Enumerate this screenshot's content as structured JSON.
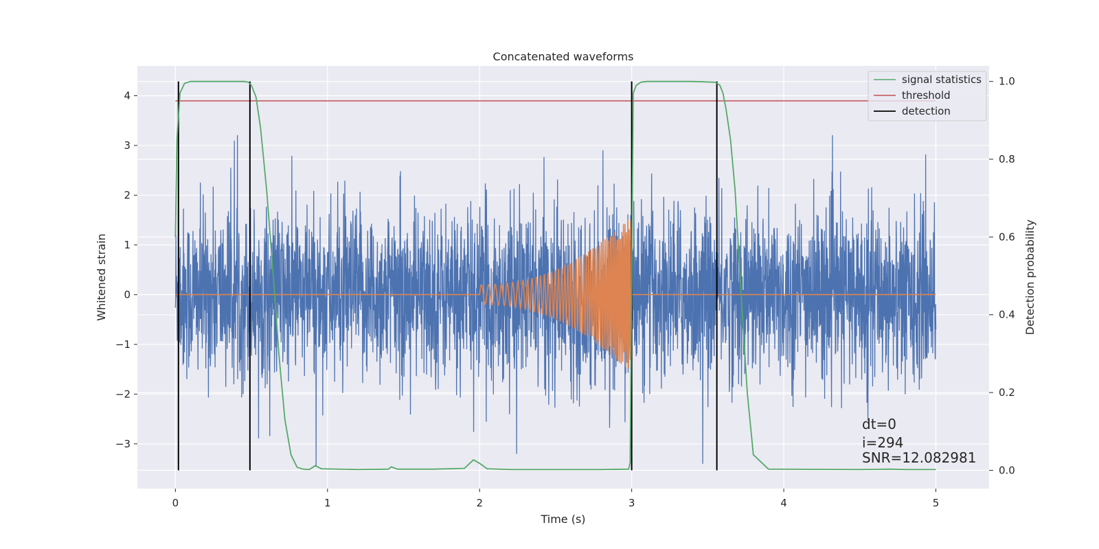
{
  "chart_data": {
    "type": "line",
    "title": "Concatenated waveforms",
    "xlabel": "Time (s)",
    "ylabel": "Whitened strain",
    "y2label": "Detection probability",
    "xlim": [
      -0.25,
      5.35
    ],
    "ylim": [
      -3.9,
      4.6
    ],
    "y2lim": [
      -0.047,
      1.04
    ],
    "xticks": [
      0,
      1,
      2,
      3,
      4,
      5
    ],
    "xtick_labels": [
      "0",
      "1",
      "2",
      "3",
      "4",
      "5"
    ],
    "yticks": [
      -3,
      -2,
      -1,
      0,
      1,
      2,
      3,
      4
    ],
    "ytick_labels": [
      "−3",
      "−2",
      "−1",
      "0",
      "1",
      "2",
      "3",
      "4"
    ],
    "y2ticks": [
      0.0,
      0.2,
      0.4,
      0.6,
      0.8,
      1.0
    ],
    "y2tick_labels": [
      "0.0",
      "0.2",
      "0.4",
      "0.6",
      "0.8",
      "1.0"
    ],
    "grid": true,
    "legend_position": "top-right",
    "series": [
      {
        "name": "",
        "axis": "left",
        "color": "#4c72b0",
        "kind": "noise",
        "x_range": [
          0,
          5
        ],
        "typical_envelope": 1.5,
        "peak_max": 3.2,
        "peak_min": -3.45
      },
      {
        "name": "",
        "axis": "left",
        "color": "#dd8452",
        "kind": "chirp",
        "x_range": [
          0,
          5
        ],
        "chirp_start": 2.0,
        "chirp_end": 3.0,
        "chirp_start_amplitude": 0.2,
        "chirp_end_amplitude": 1.6
      },
      {
        "name": "signal statistics",
        "axis": "right",
        "color": "#55a868",
        "x": [
          0.0,
          0.01,
          0.03,
          0.06,
          0.1,
          0.3,
          0.45,
          0.48,
          0.5,
          0.53,
          0.56,
          0.6,
          0.64,
          0.68,
          0.72,
          0.76,
          0.8,
          0.84,
          0.88,
          0.92,
          0.96,
          1.2,
          1.4,
          1.42,
          1.46,
          1.7,
          1.9,
          1.96,
          2.0,
          2.05,
          2.2,
          2.8,
          2.98,
          2.99,
          3.0,
          3.01,
          3.03,
          3.06,
          3.1,
          3.4,
          3.55,
          3.58,
          3.6,
          3.62,
          3.65,
          3.68,
          3.72,
          3.76,
          3.8,
          3.9,
          4.5,
          4.7,
          4.8,
          5.0
        ],
        "y": [
          0.6,
          0.85,
          0.97,
          0.995,
          1.0,
          1.0,
          1.0,
          0.998,
          0.99,
          0.96,
          0.88,
          0.72,
          0.52,
          0.3,
          0.13,
          0.04,
          0.008,
          0.003,
          0.002,
          0.012,
          0.004,
          0.002,
          0.003,
          0.009,
          0.003,
          0.003,
          0.005,
          0.027,
          0.018,
          0.004,
          0.002,
          0.002,
          0.003,
          0.02,
          0.5,
          0.97,
          0.99,
          0.998,
          1.0,
          1.0,
          0.998,
          0.99,
          0.97,
          0.93,
          0.85,
          0.72,
          0.45,
          0.2,
          0.04,
          0.003,
          0.002,
          0.003,
          0.002,
          0.002
        ]
      },
      {
        "name": "threshold",
        "axis": "right",
        "color": "#c44e52",
        "x": [
          0,
          5
        ],
        "y": [
          0.95,
          0.95
        ]
      }
    ],
    "detections": {
      "name": "detection",
      "color": "#000000",
      "x": [
        0.02,
        0.49,
        3.0,
        3.56
      ],
      "y_range": [
        0.0,
        1.0
      ]
    },
    "annotations": [
      "dt=0",
      "i=294",
      "SNR=12.082981"
    ]
  }
}
